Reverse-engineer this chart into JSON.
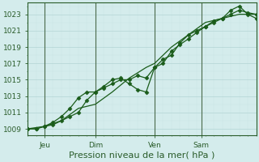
{
  "bg_color": "#d4ecec",
  "grid_color_major": "#b8d8d8",
  "grid_color_minor": "#c8e4e4",
  "line_color": "#1a5c1a",
  "marker_color": "#1a5c1a",
  "vline_color": "#4a6a4a",
  "axis_color": "#2a5c2a",
  "tick_color": "#2a5c2a",
  "xlabel": "Pression niveau de la mer( hPa )",
  "xlabel_fontsize": 8,
  "tick_fontsize": 6.5,
  "yticks": [
    1009,
    1011,
    1013,
    1015,
    1017,
    1019,
    1021,
    1023
  ],
  "ylim": [
    1008.2,
    1024.4
  ],
  "xlim": [
    0,
    108
  ],
  "xtick_positions": [
    8,
    32,
    60,
    82
  ],
  "xtick_labels": [
    "Jeu",
    "Dim",
    "Ven",
    "Sam"
  ],
  "vlines": [
    8,
    32,
    60,
    82
  ],
  "series1_x": [
    0,
    4,
    8,
    12,
    16,
    20,
    24,
    28,
    32,
    36,
    40,
    44,
    48,
    52,
    56,
    60,
    64,
    68,
    72,
    76,
    80,
    84,
    88,
    92,
    96,
    100,
    104,
    108
  ],
  "series1_y": [
    1009.0,
    1009.0,
    1009.3,
    1009.5,
    1010.0,
    1010.5,
    1011.0,
    1012.5,
    1013.5,
    1014.0,
    1014.5,
    1015.0,
    1015.0,
    1015.5,
    1015.2,
    1016.5,
    1017.5,
    1018.0,
    1019.5,
    1020.5,
    1021.0,
    1021.5,
    1022.0,
    1022.5,
    1023.0,
    1023.5,
    1023.2,
    1023.0
  ],
  "series2_x": [
    0,
    4,
    8,
    12,
    16,
    20,
    24,
    28,
    32,
    36,
    40,
    44,
    48,
    52,
    56,
    60,
    64,
    68,
    72,
    76,
    80,
    84,
    88,
    92,
    96,
    100,
    104,
    108
  ],
  "series2_y": [
    1009.0,
    1009.0,
    1009.3,
    1009.8,
    1010.5,
    1011.5,
    1012.8,
    1013.5,
    1013.5,
    1014.2,
    1015.0,
    1015.2,
    1014.5,
    1013.8,
    1013.5,
    1016.5,
    1017.0,
    1018.5,
    1019.3,
    1020.0,
    1020.8,
    1021.5,
    1022.2,
    1022.5,
    1023.5,
    1024.0,
    1023.0,
    1022.5
  ],
  "series3_x": [
    0,
    8,
    16,
    24,
    32,
    40,
    48,
    56,
    60,
    68,
    76,
    84,
    92,
    100,
    108
  ],
  "series3_y": [
    1009.0,
    1009.3,
    1010.0,
    1011.5,
    1012.0,
    1013.5,
    1015.2,
    1016.5,
    1017.0,
    1019.0,
    1020.5,
    1022.0,
    1022.5,
    1023.0,
    1023.0
  ]
}
